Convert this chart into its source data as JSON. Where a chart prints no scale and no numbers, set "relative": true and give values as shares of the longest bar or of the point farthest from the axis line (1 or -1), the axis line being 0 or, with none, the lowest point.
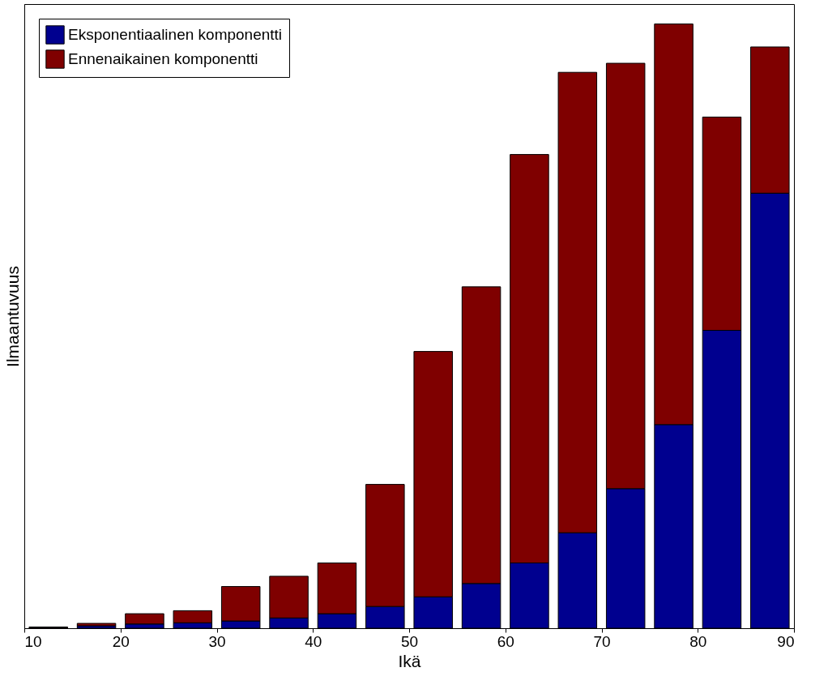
{
  "chart_data": {
    "type": "bar",
    "stacked": true,
    "relative": true,
    "xlabel": "Ikä",
    "ylabel": "Ilmaantuvuus",
    "x": [
      12.5,
      17.5,
      22.5,
      27.5,
      32.5,
      37.5,
      42.5,
      47.5,
      52.5,
      57.5,
      62.5,
      67.5,
      72.5,
      77.5,
      82.5,
      87.5
    ],
    "xlim": [
      10,
      90
    ],
    "xticks": [
      10,
      20,
      30,
      40,
      50,
      60,
      70,
      80,
      90
    ],
    "series": [
      {
        "name": "Eksponentiaalinen komponentti",
        "color": "#00008f",
        "values": [
          0.001,
          0.004,
          0.007,
          0.009,
          0.012,
          0.017,
          0.024,
          0.036,
          0.052,
          0.074,
          0.108,
          0.158,
          0.231,
          0.337,
          0.493,
          0.72
        ]
      },
      {
        "name": "Ennenaikainen komponentti",
        "color": "#7f0000",
        "values": [
          0.001,
          0.004,
          0.017,
          0.02,
          0.057,
          0.069,
          0.084,
          0.202,
          0.406,
          0.491,
          0.676,
          0.762,
          0.704,
          0.663,
          0.353,
          0.242
        ]
      }
    ],
    "legend": "top left",
    "grid": false
  }
}
